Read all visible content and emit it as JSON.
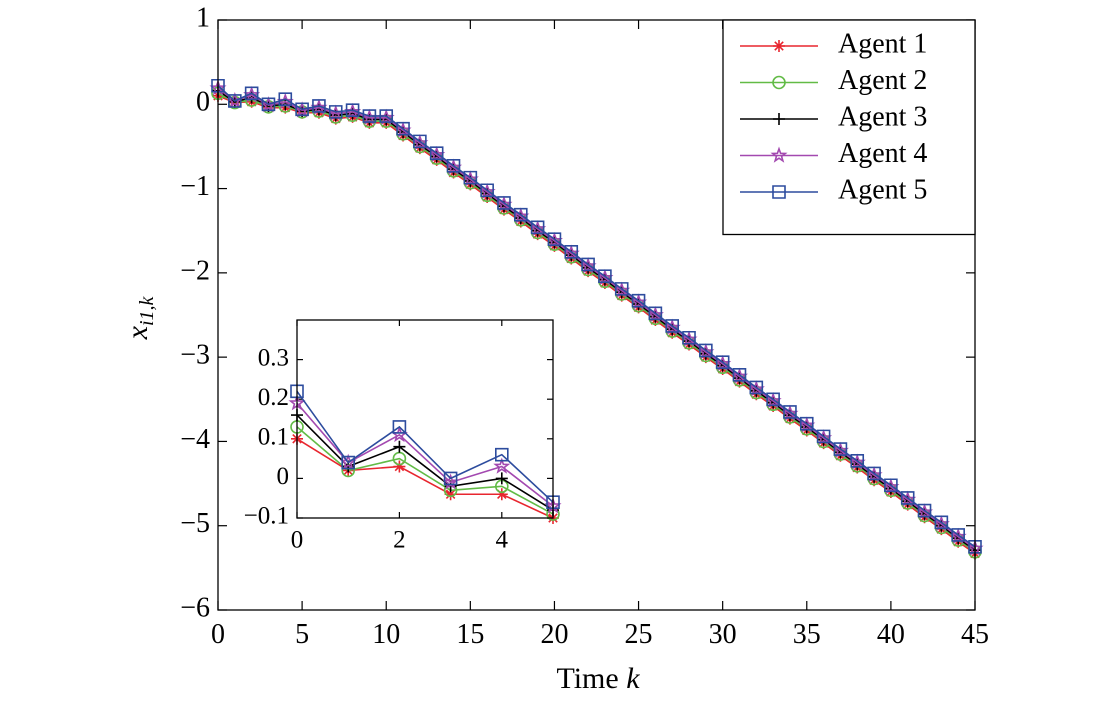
{
  "chart_data": [
    {
      "type": "line",
      "xlabel": "Time",
      "xlabel_var": "k",
      "ylabel": "x",
      "ylabel_sub": "i1,k",
      "x": [
        0,
        1,
        2,
        3,
        4,
        5,
        6,
        7,
        8,
        9,
        10,
        11,
        12,
        13,
        14,
        15,
        16,
        17,
        18,
        19,
        20,
        21,
        22,
        23,
        24,
        25,
        26,
        27,
        28,
        29,
        30,
        31,
        32,
        33,
        34,
        35,
        36,
        37,
        38,
        39,
        40,
        41,
        42,
        43,
        44,
        45
      ],
      "xlim": [
        0,
        45
      ],
      "xticks": [
        0,
        5,
        10,
        15,
        20,
        25,
        30,
        35,
        40,
        45
      ],
      "ylim": [
        -6,
        1
      ],
      "yticks": [
        {
          "value": -6,
          "label": "−6"
        },
        {
          "value": -5,
          "label": "−5"
        },
        {
          "value": -4,
          "label": "−4"
        },
        {
          "value": -3,
          "label": "−3"
        },
        {
          "value": -2,
          "label": "−2"
        },
        {
          "value": -1,
          "label": "−1"
        },
        0,
        1
      ],
      "legend": "upper right",
      "series": [
        {
          "name": "Agent 1",
          "color": "#e8262f",
          "marker": "asterisk",
          "values": [
            0.1,
            0.02,
            0.03,
            -0.04,
            -0.04,
            -0.1,
            -0.1,
            -0.17,
            -0.15,
            -0.22,
            -0.22,
            -0.37,
            -0.52,
            -0.66,
            -0.81,
            -0.95,
            -1.1,
            -1.25,
            -1.39,
            -1.54,
            -1.68,
            -1.83,
            -1.98,
            -2.12,
            -2.27,
            -2.41,
            -2.56,
            -2.71,
            -2.85,
            -3.0,
            -3.14,
            -3.29,
            -3.44,
            -3.58,
            -3.73,
            -3.87,
            -4.02,
            -4.17,
            -4.31,
            -4.46,
            -4.6,
            -4.75,
            -4.9,
            -5.04,
            -5.19,
            -5.33
          ]
        },
        {
          "name": "Agent 2",
          "color": "#62bb46",
          "marker": "circle",
          "values": [
            0.13,
            0.02,
            0.05,
            -0.03,
            -0.02,
            -0.09,
            -0.08,
            -0.15,
            -0.13,
            -0.2,
            -0.2,
            -0.35,
            -0.5,
            -0.64,
            -0.79,
            -0.93,
            -1.08,
            -1.23,
            -1.37,
            -1.52,
            -1.66,
            -1.81,
            -1.96,
            -2.1,
            -2.25,
            -2.39,
            -2.54,
            -2.69,
            -2.83,
            -2.98,
            -3.12,
            -3.27,
            -3.42,
            -3.56,
            -3.71,
            -3.85,
            -4.0,
            -4.15,
            -4.29,
            -4.44,
            -4.58,
            -4.73,
            -4.88,
            -5.02,
            -5.17,
            -5.31
          ]
        },
        {
          "name": "Agent 3",
          "color": "#000000",
          "marker": "plus",
          "values": [
            0.16,
            0.03,
            0.08,
            -0.02,
            0,
            -0.08,
            -0.06,
            -0.13,
            -0.11,
            -0.18,
            -0.18,
            -0.33,
            -0.48,
            -0.62,
            -0.77,
            -0.91,
            -1.06,
            -1.21,
            -1.35,
            -1.5,
            -1.64,
            -1.79,
            -1.94,
            -2.08,
            -2.23,
            -2.37,
            -2.52,
            -2.67,
            -2.81,
            -2.96,
            -3.1,
            -3.25,
            -3.4,
            -3.54,
            -3.69,
            -3.83,
            -3.98,
            -4.13,
            -4.27,
            -4.42,
            -4.56,
            -4.71,
            -4.86,
            -5.0,
            -5.15,
            -5.29
          ]
        },
        {
          "name": "Agent 4",
          "color": "#a349b0",
          "marker": "star",
          "values": [
            0.19,
            0.04,
            0.11,
            -0.01,
            0.03,
            -0.07,
            -0.04,
            -0.11,
            -0.09,
            -0.16,
            -0.16,
            -0.31,
            -0.46,
            -0.6,
            -0.75,
            -0.89,
            -1.04,
            -1.19,
            -1.33,
            -1.48,
            -1.62,
            -1.77,
            -1.92,
            -2.06,
            -2.21,
            -2.35,
            -2.5,
            -2.65,
            -2.79,
            -2.94,
            -3.08,
            -3.23,
            -3.38,
            -3.52,
            -3.67,
            -3.81,
            -3.96,
            -4.11,
            -4.25,
            -4.4,
            -4.54,
            -4.69,
            -4.84,
            -4.98,
            -5.13,
            -5.27
          ]
        },
        {
          "name": "Agent 5",
          "color": "#2d4c9e",
          "marker": "square",
          "values": [
            0.22,
            0.04,
            0.13,
            0,
            0.06,
            -0.06,
            -0.02,
            -0.09,
            -0.07,
            -0.14,
            -0.14,
            -0.29,
            -0.44,
            -0.58,
            -0.73,
            -0.87,
            -1.02,
            -1.17,
            -1.31,
            -1.46,
            -1.6,
            -1.75,
            -1.9,
            -2.04,
            -2.19,
            -2.33,
            -2.48,
            -2.63,
            -2.77,
            -2.92,
            -3.06,
            -3.21,
            -3.36,
            -3.5,
            -3.65,
            -3.79,
            -3.94,
            -4.09,
            -4.23,
            -4.38,
            -4.52,
            -4.67,
            -4.82,
            -4.96,
            -5.11,
            -5.25
          ]
        }
      ]
    },
    {
      "type": "line",
      "x": [
        0,
        1,
        2,
        3,
        4,
        5
      ],
      "xlim": [
        0,
        5
      ],
      "xticks": [
        0,
        2,
        4
      ],
      "ylim": [
        -0.1,
        0.4
      ],
      "yticks": [
        {
          "value": -0.1,
          "label": "−0.1"
        },
        0,
        0.1,
        0.2,
        0.3
      ],
      "series": [
        {
          "color": "#e8262f",
          "marker": "asterisk",
          "values": [
            0.1,
            0.02,
            0.03,
            -0.04,
            -0.04,
            -0.1
          ]
        },
        {
          "color": "#62bb46",
          "marker": "circle",
          "values": [
            0.13,
            0.02,
            0.05,
            -0.03,
            -0.02,
            -0.09
          ]
        },
        {
          "color": "#000000",
          "marker": "plus",
          "values": [
            0.16,
            0.03,
            0.08,
            -0.02,
            0,
            -0.08
          ]
        },
        {
          "color": "#a349b0",
          "marker": "star",
          "values": [
            0.19,
            0.04,
            0.11,
            -0.01,
            0.03,
            -0.07
          ]
        },
        {
          "color": "#2d4c9e",
          "marker": "square",
          "values": [
            0.22,
            0.04,
            0.13,
            0,
            0.06,
            -0.06
          ]
        }
      ]
    }
  ]
}
